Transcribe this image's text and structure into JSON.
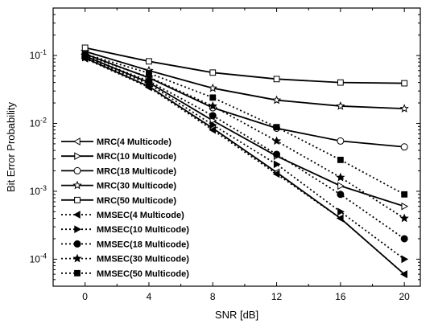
{
  "chart_data": {
    "type": "line",
    "title": "",
    "xlabel": "SNR [dB]",
    "ylabel": "Bit Error Probability",
    "x": [
      0,
      4,
      8,
      12,
      16,
      20
    ],
    "xlim": [
      -2,
      21
    ],
    "ylim": [
      4e-05,
      0.5
    ],
    "yscale": "log",
    "xticks": [
      0,
      4,
      8,
      12,
      16,
      20
    ],
    "yticks": [
      {
        "value": 0.1,
        "base": "10",
        "exp": "-1"
      },
      {
        "value": 0.01,
        "base": "10",
        "exp": "-2"
      },
      {
        "value": 0.001,
        "base": "10",
        "exp": "-3"
      },
      {
        "value": 0.0001,
        "base": "10",
        "exp": "-4"
      }
    ],
    "grid": false,
    "legend_position": "bottom-left",
    "series": [
      {
        "name": "MRC(4 Multicode)",
        "marker": "triangle-left",
        "filled": false,
        "dash": "solid",
        "values": [
          0.092,
          0.035,
          0.0085,
          0.0019,
          0.0004,
          6e-05
        ]
      },
      {
        "name": "MRC(10 Multicode)",
        "marker": "triangle-right",
        "filled": false,
        "dash": "solid",
        "values": [
          0.098,
          0.04,
          0.011,
          0.0033,
          0.0012,
          0.0006
        ]
      },
      {
        "name": "MRC(18 Multicode)",
        "marker": "circle",
        "filled": false,
        "dash": "solid",
        "values": [
          0.105,
          0.047,
          0.017,
          0.0085,
          0.0055,
          0.0045
        ]
      },
      {
        "name": "MRC(30 Multicode)",
        "marker": "star",
        "filled": false,
        "dash": "solid",
        "values": [
          0.115,
          0.06,
          0.033,
          0.022,
          0.018,
          0.0165
        ]
      },
      {
        "name": "MRC(50 Multicode)",
        "marker": "square",
        "filled": false,
        "dash": "solid",
        "values": [
          0.13,
          0.082,
          0.056,
          0.045,
          0.04,
          0.039
        ]
      },
      {
        "name": "MMSEC(4 Multicode)",
        "marker": "triangle-left",
        "filled": true,
        "dash": "dotted",
        "values": [
          0.09,
          0.034,
          0.008,
          0.0018,
          0.0004,
          6e-05
        ]
      },
      {
        "name": "MMSEC(10 Multicode)",
        "marker": "triangle-right",
        "filled": true,
        "dash": "dotted",
        "values": [
          0.093,
          0.038,
          0.0095,
          0.0025,
          0.0005,
          0.0001
        ]
      },
      {
        "name": "MMSEC(18 Multicode)",
        "marker": "circle",
        "filled": true,
        "dash": "dotted",
        "values": [
          0.096,
          0.042,
          0.013,
          0.0035,
          0.0009,
          0.0002
        ]
      },
      {
        "name": "MMSEC(30 Multicode)",
        "marker": "star",
        "filled": true,
        "dash": "dotted",
        "values": [
          0.1,
          0.048,
          0.018,
          0.0055,
          0.0016,
          0.0004
        ]
      },
      {
        "name": "MMSEC(50 Multicode)",
        "marker": "square",
        "filled": true,
        "dash": "dotted",
        "values": [
          0.105,
          0.055,
          0.024,
          0.0088,
          0.0029,
          0.0009
        ]
      }
    ]
  }
}
